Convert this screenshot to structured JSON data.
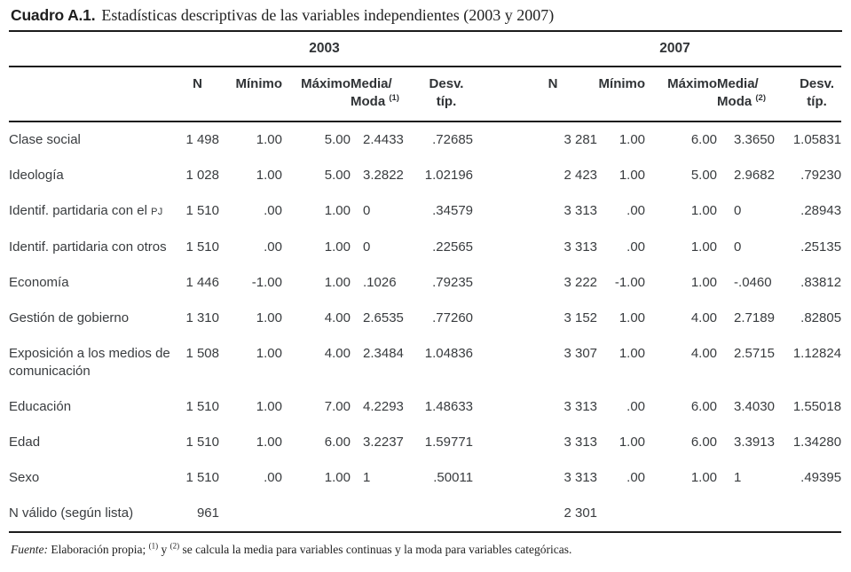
{
  "title": {
    "label": "Cuadro A.1.",
    "text": "Estadísticas descriptivas de las variables independientes (2003 y 2007)"
  },
  "table": {
    "years": {
      "y2003": "2003",
      "y2007": "2007"
    },
    "headers": {
      "n": "N",
      "min": "Mínimo",
      "max": "Máximo",
      "media_line1": "Media/",
      "media_line2": "Moda",
      "sup_2003": "(1)",
      "sup_2007": "(2)",
      "desv_line1": "Desv.",
      "desv_line2": "típ."
    },
    "rows": [
      {
        "label": "Clase social",
        "n03": "1 498",
        "min03": "1.00",
        "max03": "5.00",
        "media03": "2.4433",
        "desv03": ".72685",
        "n07": "3 281",
        "min07": "1.00",
        "max07": "6.00",
        "media07": "3.3650",
        "desv07": "1.05831"
      },
      {
        "label": "Ideología",
        "n03": "1 028",
        "min03": "1.00",
        "max03": "5.00",
        "media03": "3.2822",
        "desv03": "1.02196",
        "n07": "2 423",
        "min07": "1.00",
        "max07": "5.00",
        "media07": "2.9682",
        "desv07": ".79230"
      },
      {
        "label": "Identif. partidaria con el ",
        "label_sc": "PJ",
        "n03": "1 510",
        "min03": ".00",
        "max03": "1.00",
        "media03": "0",
        "desv03": ".34579",
        "n07": "3 313",
        "min07": ".00",
        "max07": "1.00",
        "media07": "0",
        "desv07": ".28943"
      },
      {
        "label": "Identif. partidaria con otros",
        "n03": "1 510",
        "min03": ".00",
        "max03": "1.00",
        "media03": "0",
        "desv03": ".22565",
        "n07": "3 313",
        "min07": ".00",
        "max07": "1.00",
        "media07": "0",
        "desv07": ".25135"
      },
      {
        "label": "Economía",
        "n03": "1 446",
        "min03": "-1.00",
        "max03": "1.00",
        "media03": ".1026",
        "desv03": ".79235",
        "n07": "3 222",
        "min07": "-1.00",
        "max07": "1.00",
        "media07": "-.0460",
        "desv07": ".83812"
      },
      {
        "label": "Gestión de gobierno",
        "n03": "1 310",
        "min03": "1.00",
        "max03": "4.00",
        "media03": "2.6535",
        "desv03": ".77260",
        "n07": "3 152",
        "min07": "1.00",
        "max07": "4.00",
        "media07": "2.7189",
        "desv07": ".82805"
      },
      {
        "label": "Exposición a los medios de comunicación",
        "n03": "1 508",
        "min03": "1.00",
        "max03": "4.00",
        "media03": "2.3484",
        "desv03": "1.04836",
        "n07": "3 307",
        "min07": "1.00",
        "max07": "4.00",
        "media07": "2.5715",
        "desv07": "1.12824"
      },
      {
        "label": "Educación",
        "n03": "1 510",
        "min03": "1.00",
        "max03": "7.00",
        "media03": "4.2293",
        "desv03": "1.48633",
        "n07": "3 313",
        "min07": ".00",
        "max07": "6.00",
        "media07": "3.4030",
        "desv07": "1.55018"
      },
      {
        "label": "Edad",
        "n03": "1 510",
        "min03": "1.00",
        "max03": "6.00",
        "media03": "3.2237",
        "desv03": "1.59771",
        "n07": "3 313",
        "min07": "1.00",
        "max07": "6.00",
        "media07": "3.3913",
        "desv07": "1.34280"
      },
      {
        "label": "Sexo",
        "n03": "1 510",
        "min03": ".00",
        "max03": "1.00",
        "media03": "1",
        "desv03": ".50011",
        "n07": "3 313",
        "min07": ".00",
        "max07": "1.00",
        "media07": "1",
        "desv07": ".49395"
      },
      {
        "label": "N válido (según lista)",
        "n03": "961",
        "min03": "",
        "max03": "",
        "media03": "",
        "desv03": "",
        "n07": "2 301",
        "min07": "",
        "max07": "",
        "media07": "",
        "desv07": ""
      }
    ]
  },
  "footer": {
    "fuente": "Fuente:",
    "part1": " Elaboración propia; ",
    "sup1": "(1)",
    "part2": " y ",
    "sup2": "(2)",
    "part3": " se calcula la media para variables continuas y la moda para variables categóricas."
  },
  "chart_data": {
    "type": "table",
    "title": "Cuadro A.1. Estadísticas descriptivas de las variables independientes (2003 y 2007)",
    "column_groups": [
      "2003",
      "2007"
    ],
    "columns": [
      "N",
      "Mínimo",
      "Máximo",
      "Media/Moda",
      "Desv. típ."
    ],
    "rows_2003": {
      "Clase social": [
        "1 498",
        "1.00",
        "5.00",
        "2.4433",
        ".72685"
      ],
      "Ideología": [
        "1 028",
        "1.00",
        "5.00",
        "3.2822",
        "1.02196"
      ],
      "Identif. partidaria con el PJ": [
        "1 510",
        ".00",
        "1.00",
        "0",
        ".34579"
      ],
      "Identif. partidaria con otros": [
        "1 510",
        ".00",
        "1.00",
        "0",
        ".22565"
      ],
      "Economía": [
        "1 446",
        "-1.00",
        "1.00",
        ".1026",
        ".79235"
      ],
      "Gestión de gobierno": [
        "1 310",
        "1.00",
        "4.00",
        "2.6535",
        ".77260"
      ],
      "Exposición a los medios de comunicación": [
        "1 508",
        "1.00",
        "4.00",
        "2.3484",
        "1.04836"
      ],
      "Educación": [
        "1 510",
        "1.00",
        "7.00",
        "4.2293",
        "1.48633"
      ],
      "Edad": [
        "1 510",
        "1.00",
        "6.00",
        "3.2237",
        "1.59771"
      ],
      "Sexo": [
        "1 510",
        ".00",
        "1.00",
        "1",
        ".50011"
      ],
      "N válido (según lista)": [
        "961",
        "",
        "",
        "",
        ""
      ]
    },
    "rows_2007": {
      "Clase social": [
        "3 281",
        "1.00",
        "6.00",
        "3.3650",
        "1.05831"
      ],
      "Ideología": [
        "2 423",
        "1.00",
        "5.00",
        "2.9682",
        ".79230"
      ],
      "Identif. partidaria con el PJ": [
        "3 313",
        ".00",
        "1.00",
        "0",
        ".28943"
      ],
      "Identif. partidaria con otros": [
        "3 313",
        ".00",
        "1.00",
        "0",
        ".25135"
      ],
      "Economía": [
        "3 222",
        "-1.00",
        "1.00",
        "-.0460",
        ".83812"
      ],
      "Gestión de gobierno": [
        "3 152",
        "1.00",
        "4.00",
        "2.7189",
        ".82805"
      ],
      "Exposición a los medios de comunicación": [
        "3 307",
        "1.00",
        "4.00",
        "2.5715",
        "1.12824"
      ],
      "Educación": [
        "3 313",
        ".00",
        "6.00",
        "3.4030",
        "1.55018"
      ],
      "Edad": [
        "3 313",
        "1.00",
        "6.00",
        "3.3913",
        "1.34280"
      ],
      "Sexo": [
        "3 313",
        ".00",
        "1.00",
        "1",
        ".49395"
      ],
      "N válido (según lista)": [
        "2 301",
        "",
        "",
        "",
        ""
      ]
    }
  }
}
